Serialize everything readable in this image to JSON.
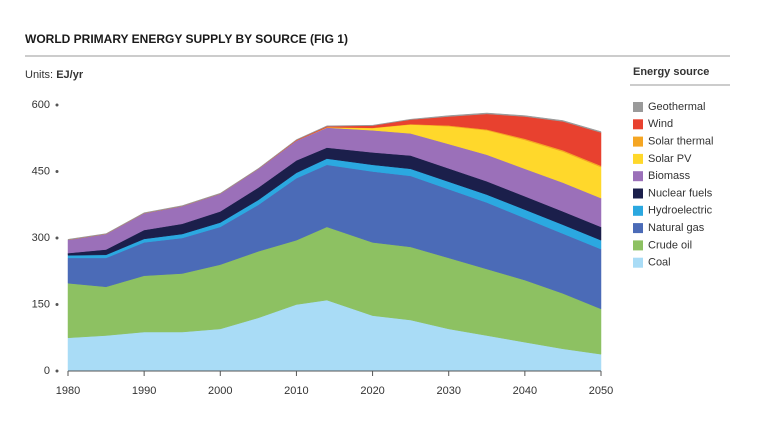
{
  "chart_data": {
    "type": "stacked_area",
    "title": "WORLD PRIMARY ENERGY SUPPLY BY SOURCE (FIG 1)",
    "units_prefix": "Units:",
    "units": "EJ/yr",
    "legend_title": "Energy source",
    "x": [
      1980,
      1985,
      1990,
      1995,
      2000,
      2005,
      2010,
      2014,
      2020,
      2025,
      2030,
      2035,
      2040,
      2045,
      2050
    ],
    "xlim": [
      1980,
      2050
    ],
    "xticks": [
      1980,
      1990,
      2000,
      2010,
      2020,
      2030,
      2040,
      2050
    ],
    "ylim": [
      0,
      600
    ],
    "yticks": [
      0,
      150,
      300,
      450,
      600
    ],
    "series": [
      {
        "name": "Coal",
        "color": "#a9dcf6",
        "values": [
          75,
          80,
          88,
          88,
          95,
          120,
          150,
          160,
          125,
          115,
          95,
          80,
          65,
          50,
          38
        ]
      },
      {
        "name": "Crude oil",
        "color": "#8dc162",
        "values": [
          123,
          110,
          127,
          132,
          145,
          150,
          145,
          165,
          165,
          165,
          160,
          150,
          140,
          125,
          102
        ]
      },
      {
        "name": "Natural gas",
        "color": "#4b6bb7",
        "values": [
          57,
          65,
          75,
          80,
          85,
          105,
          140,
          140,
          160,
          160,
          155,
          150,
          140,
          135,
          135
        ]
      },
      {
        "name": "Hydroelectric",
        "color": "#2ba8e0",
        "values": [
          6,
          7,
          8,
          9,
          10,
          11,
          12,
          14,
          15,
          16,
          17,
          18,
          19,
          20,
          20
        ]
      },
      {
        "name": "Nuclear fuels",
        "color": "#1b1f4b",
        "values": [
          5,
          12,
          20,
          23,
          25,
          28,
          28,
          25,
          28,
          30,
          30,
          30,
          30,
          30,
          30
        ]
      },
      {
        "name": "Biomass",
        "color": "#9b70b9",
        "values": [
          30,
          35,
          38,
          40,
          40,
          42,
          45,
          45,
          50,
          50,
          55,
          60,
          62,
          65,
          65
        ]
      },
      {
        "name": "Solar PV",
        "color": "#ffd82b",
        "values": [
          0,
          0,
          0,
          0,
          0,
          0,
          0,
          1,
          5,
          20,
          40,
          55,
          65,
          70,
          70
        ]
      },
      {
        "name": "Solar thermal",
        "color": "#f5a623",
        "values": [
          0,
          0,
          0,
          0,
          0,
          0,
          0,
          0,
          0.5,
          1,
          2,
          2,
          3,
          3,
          3
        ]
      },
      {
        "name": "Wind",
        "color": "#e8412f",
        "values": [
          0,
          0,
          0,
          0,
          0,
          0,
          1,
          2,
          5,
          10,
          20,
          35,
          50,
          65,
          75
        ]
      },
      {
        "name": "Geothermal",
        "color": "#9a9a9a",
        "values": [
          1,
          1,
          1,
          1,
          1,
          1,
          1,
          1,
          1,
          1,
          2,
          2,
          2,
          2,
          2
        ]
      }
    ]
  }
}
